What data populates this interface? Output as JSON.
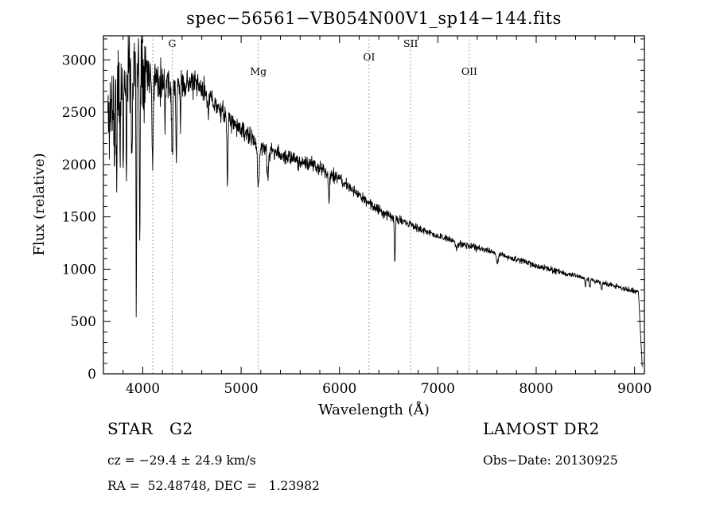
{
  "chart_data": {
    "type": "line",
    "title": "spec−56561−VB054N00V1_sp14−144.fits",
    "xlabel": "Wavelength (Å)",
    "ylabel": "Flux (relative)",
    "xlim": [
      3600,
      9100
    ],
    "ylim": [
      0,
      3230
    ],
    "xticks": [
      4000,
      5000,
      6000,
      7000,
      8000,
      9000
    ],
    "yticks": [
      0,
      500,
      1000,
      1500,
      2000,
      2500,
      3000
    ],
    "x_minor_step": 200,
    "y_minor_step": 100,
    "grid": false,
    "legend": "none",
    "line_color": "#000000",
    "marker_line_color": "#8a8a8a",
    "spectral_markers": [
      {
        "label": "",
        "wavelength": 4101,
        "label_row": 0
      },
      {
        "label": "G",
        "wavelength": 4300,
        "label_row": 0
      },
      {
        "label": "Mg",
        "wavelength": 5175,
        "label_row": 2
      },
      {
        "label": "OI",
        "wavelength": 6300,
        "label_row": 1
      },
      {
        "label": "SII",
        "wavelength": 6724,
        "label_row": 0
      },
      {
        "label": "OII",
        "wavelength": 7320,
        "label_row": 2
      }
    ],
    "spectrum": {
      "wavelength_start": 3645,
      "wavelength_end": 9080,
      "sample_step": 3,
      "seed": 11,
      "continuum_fields": [
        "wavelength",
        "flux"
      ],
      "continuum": [
        [
          3645,
          2420
        ],
        [
          3690,
          2590
        ],
        [
          3740,
          2690
        ],
        [
          3790,
          2780
        ],
        [
          3840,
          2870
        ],
        [
          3890,
          2950
        ],
        [
          3940,
          2985
        ],
        [
          4000,
          2950
        ],
        [
          4060,
          2895
        ],
        [
          4130,
          2835
        ],
        [
          4200,
          2795
        ],
        [
          4300,
          2780
        ],
        [
          4400,
          2765
        ],
        [
          4480,
          2785
        ],
        [
          4560,
          2745
        ],
        [
          4640,
          2685
        ],
        [
          4720,
          2595
        ],
        [
          4800,
          2505
        ],
        [
          4880,
          2435
        ],
        [
          4960,
          2365
        ],
        [
          5040,
          2295
        ],
        [
          5120,
          2235
        ],
        [
          5200,
          2185
        ],
        [
          5300,
          2135
        ],
        [
          5400,
          2095
        ],
        [
          5500,
          2060
        ],
        [
          5600,
          2030
        ],
        [
          5700,
          2000
        ],
        [
          5800,
          1970
        ],
        [
          5900,
          1920
        ],
        [
          6000,
          1858
        ],
        [
          6100,
          1782
        ],
        [
          6200,
          1705
        ],
        [
          6300,
          1632
        ],
        [
          6400,
          1570
        ],
        [
          6500,
          1520
        ],
        [
          6600,
          1472
        ],
        [
          6700,
          1432
        ],
        [
          6800,
          1392
        ],
        [
          6900,
          1352
        ],
        [
          7000,
          1316
        ],
        [
          7100,
          1286
        ],
        [
          7200,
          1256
        ],
        [
          7300,
          1228
        ],
        [
          7400,
          1202
        ],
        [
          7500,
          1178
        ],
        [
          7600,
          1150
        ],
        [
          7700,
          1122
        ],
        [
          7800,
          1094
        ],
        [
          7900,
          1064
        ],
        [
          8000,
          1034
        ],
        [
          8100,
          1008
        ],
        [
          8200,
          982
        ],
        [
          8300,
          958
        ],
        [
          8400,
          934
        ],
        [
          8500,
          910
        ],
        [
          8600,
          886
        ],
        [
          8700,
          862
        ],
        [
          8800,
          838
        ],
        [
          8900,
          814
        ],
        [
          9000,
          788
        ],
        [
          9080,
          762
        ]
      ],
      "absorption_line_fields": [
        "center",
        "depth",
        "fwhm"
      ],
      "absorption_lines": [
        [
          3712,
          520,
          10
        ],
        [
          3735,
          680,
          10
        ],
        [
          3770,
          560,
          10
        ],
        [
          3800,
          660,
          10
        ],
        [
          3835,
          880,
          10
        ],
        [
          3890,
          1020,
          10
        ],
        [
          3934,
          2320,
          9
        ],
        [
          3969,
          1650,
          9
        ],
        [
          4101,
          960,
          12
        ],
        [
          4227,
          360,
          8
        ],
        [
          4300,
          700,
          16
        ],
        [
          4341,
          820,
          11
        ],
        [
          4383,
          380,
          9
        ],
        [
          4668,
          220,
          10
        ],
        [
          4861,
          720,
          11
        ],
        [
          5175,
          430,
          22
        ],
        [
          5270,
          310,
          18
        ],
        [
          5893,
          270,
          14
        ],
        [
          6563,
          450,
          11
        ],
        [
          7190,
          80,
          20
        ],
        [
          7605,
          95,
          22
        ],
        [
          8500,
          70,
          12
        ],
        [
          8545,
          80,
          12
        ],
        [
          8665,
          70,
          12
        ]
      ],
      "noise_region_fields": [
        "from",
        "to",
        "amplitude"
      ],
      "noise_regions": [
        [
          3640,
          3780,
          480
        ],
        [
          3780,
          4060,
          380
        ],
        [
          4060,
          4320,
          200
        ],
        [
          4320,
          4700,
          120
        ],
        [
          4700,
          5300,
          92
        ],
        [
          5300,
          5950,
          72
        ],
        [
          5950,
          6650,
          52
        ],
        [
          6650,
          7400,
          36
        ],
        [
          7400,
          8300,
          28
        ],
        [
          8300,
          9085,
          24
        ]
      ],
      "edge_drop": {
        "start": 9040,
        "end": 9078,
        "floor": 70
      }
    }
  },
  "footer": {
    "class_label": "STAR   G2",
    "survey": "LAMOST DR2",
    "cz": "cz = −29.4 ± 24.9 km/s",
    "obs_date": "Obs−Date: 20130925",
    "ra_dec": "RA =  52.48748, DEC =   1.23982"
  }
}
